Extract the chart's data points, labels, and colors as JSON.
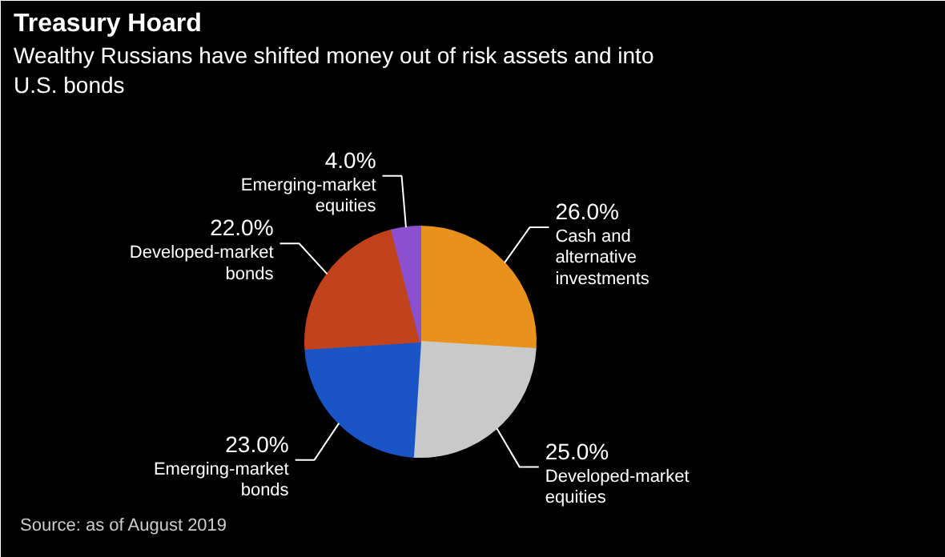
{
  "chart_data": {
    "type": "pie",
    "title": "Treasury Hoard",
    "subtitle": "Wealthy Russians have shifted money out of risk assets and into U.S. bonds",
    "categories": [
      "Cash and alternative investments",
      "Developed-market equities",
      "Emerging-market bonds",
      "Developed-market bonds",
      "Emerging-market equities"
    ],
    "values": [
      26.0,
      25.0,
      23.0,
      22.0,
      4.0
    ],
    "value_labels": [
      "26.0%",
      "25.0%",
      "23.0%",
      "22.0%",
      "4.0%"
    ],
    "colors": [
      "#e8911c",
      "#c9c9c9",
      "#1a55c6",
      "#c0431b",
      "#8c4fcf"
    ],
    "annotations": [
      "Source: as of August 2019"
    ]
  }
}
